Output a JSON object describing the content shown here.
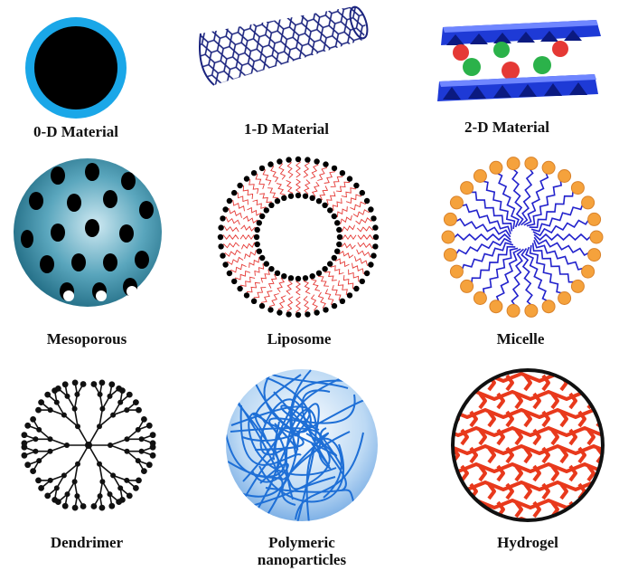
{
  "items": [
    {
      "label": "0-D Material"
    },
    {
      "label": "1-D Material"
    },
    {
      "label": "2-D Material"
    },
    {
      "label": "Mesoporous"
    },
    {
      "label": "Liposome"
    },
    {
      "label": "Micelle"
    },
    {
      "label": "Dendrimer"
    },
    {
      "label": "Polymeric nanoparticles",
      "label_line1": "Polymeric",
      "label_line2": "nanoparticles"
    },
    {
      "label": "Hydrogel"
    }
  ],
  "colors": {
    "zero_d_ring": "#1aa7e8",
    "zero_d_core": "#000000",
    "tube": "#1a237e",
    "layer": "#1e3ad6",
    "sphere_red": "#e53935",
    "sphere_green": "#2bb24a",
    "meso_body": "#3a8fa8",
    "lipid_tail": "#e53935",
    "micelle_head": "#f5a23c",
    "micelle_tail": "#2222cc",
    "polymer": "#1e6fd6",
    "hydrogel": "#e8391c"
  }
}
